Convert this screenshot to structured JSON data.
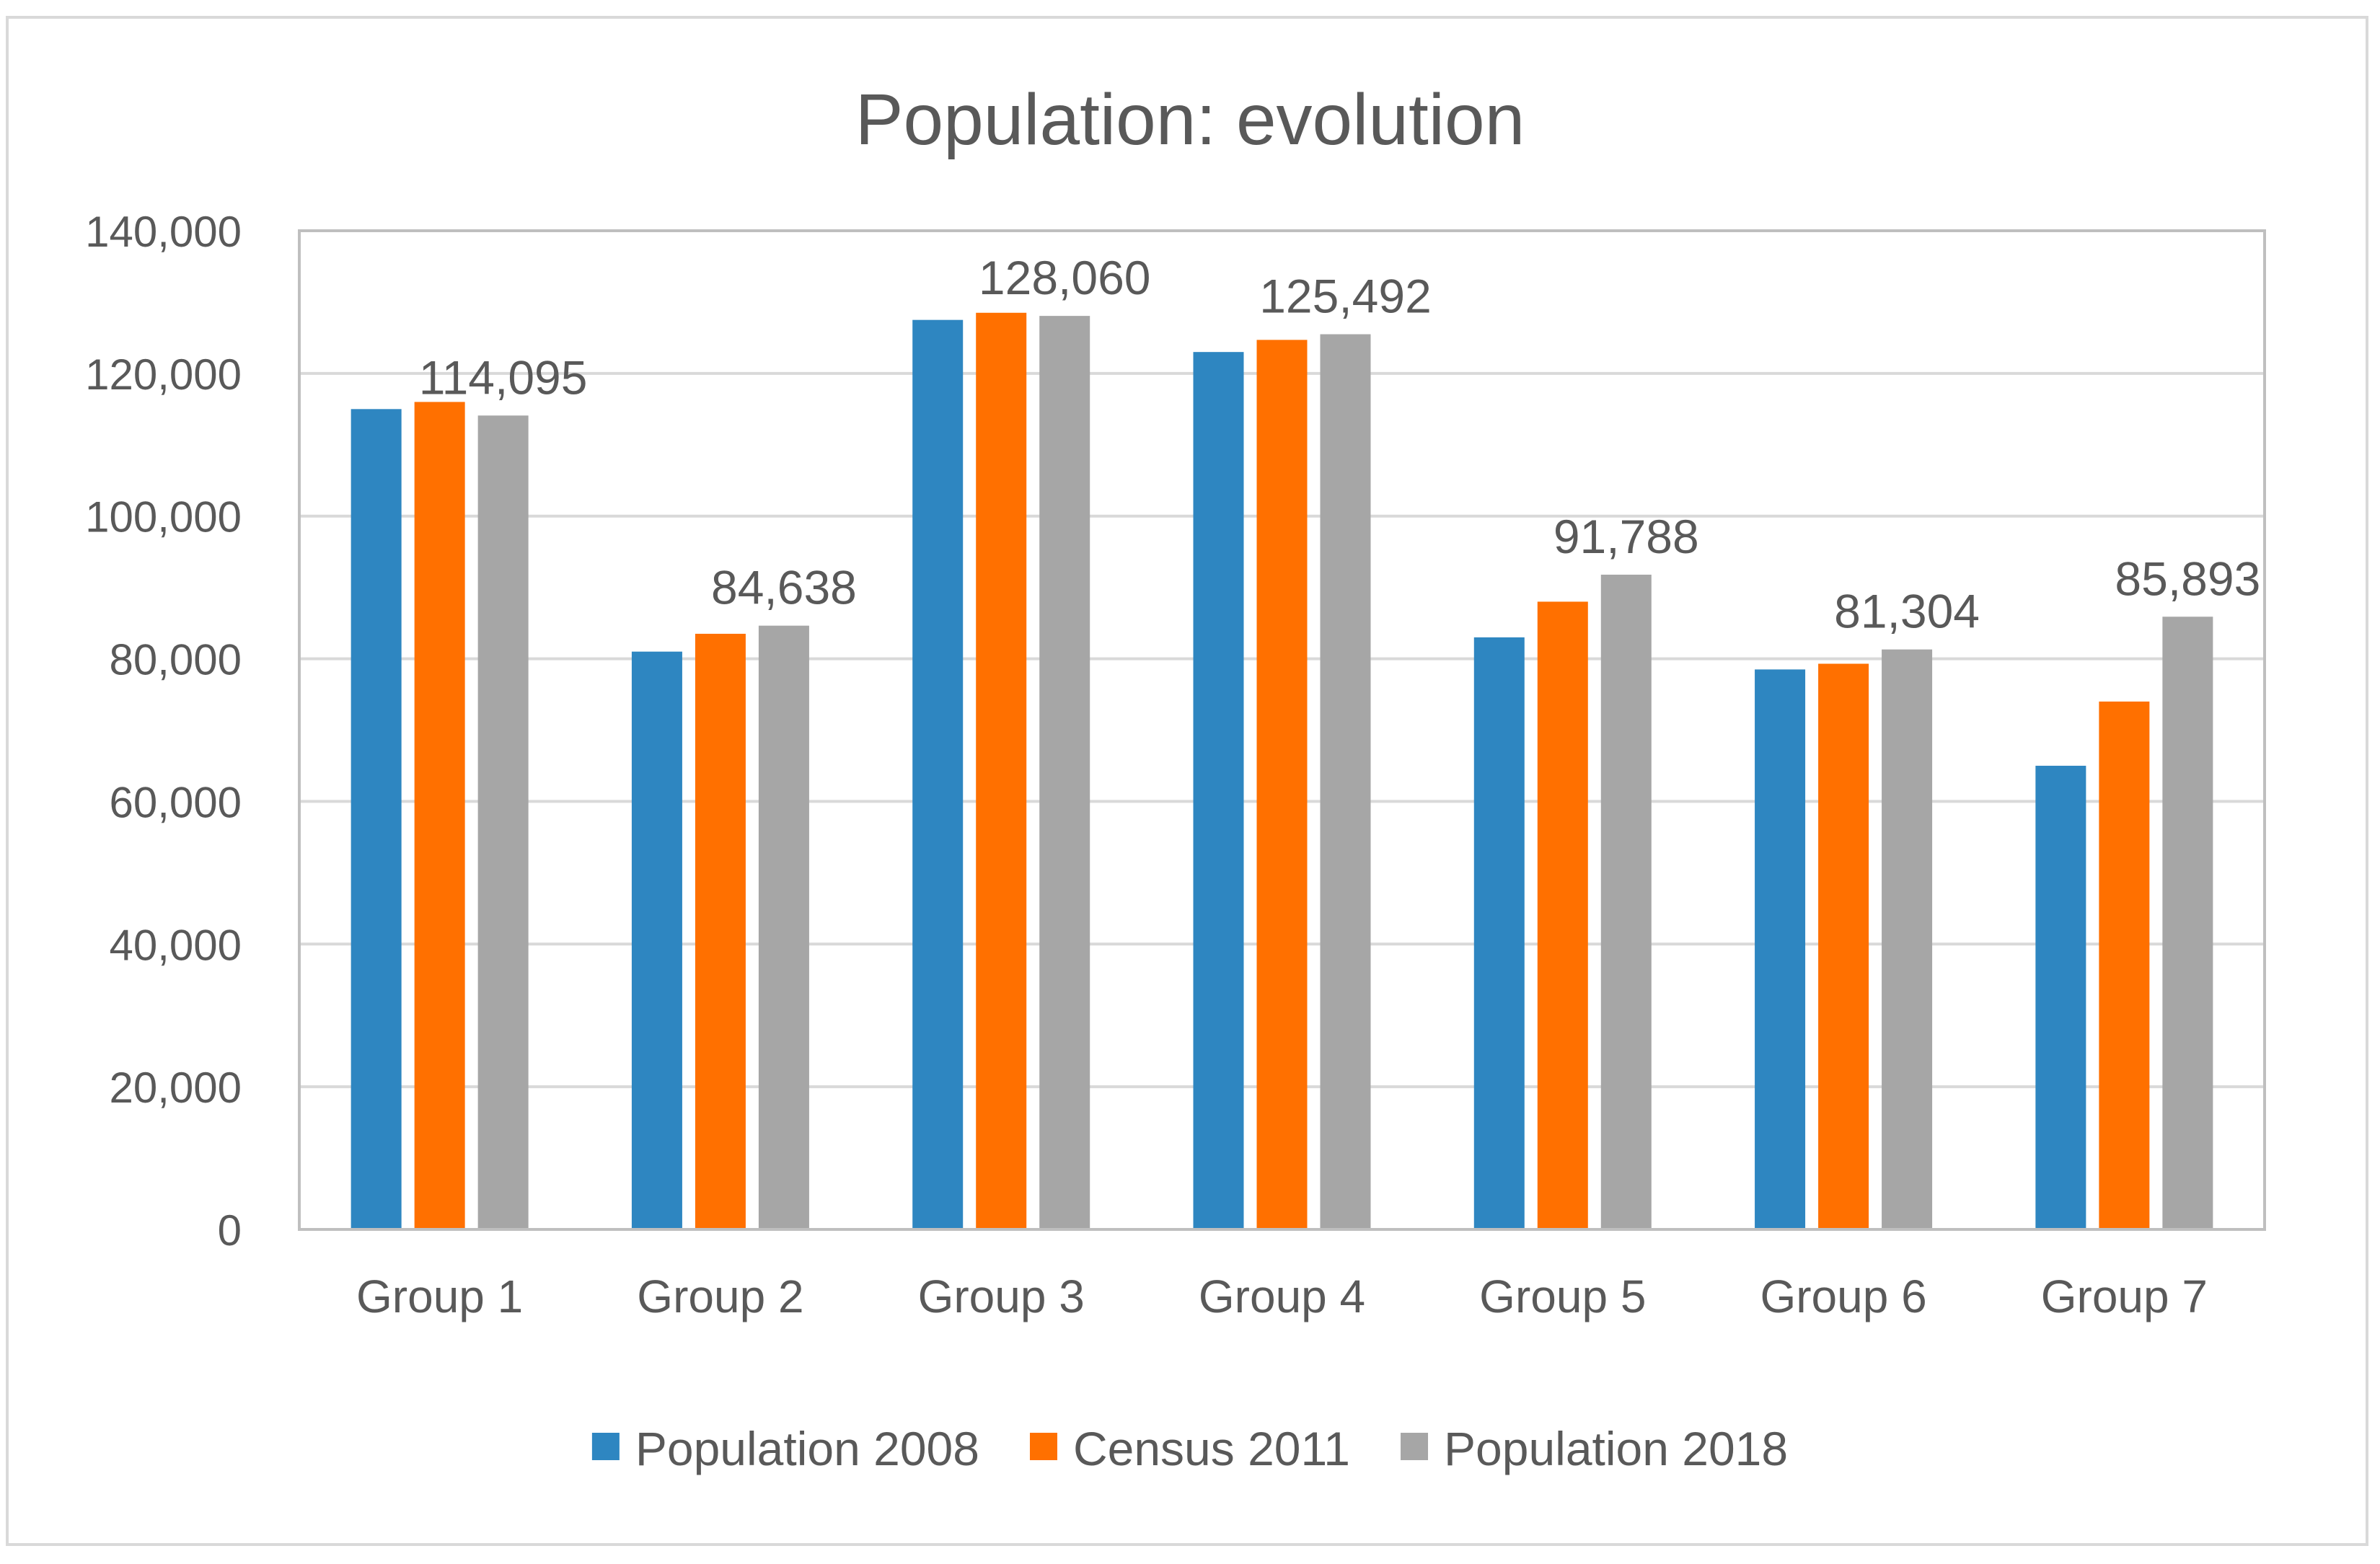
{
  "chart_data": {
    "type": "bar",
    "title": "Population: evolution",
    "xlabel": "",
    "ylabel": "",
    "ylim": [
      0,
      140000
    ],
    "yticks": [
      0,
      20000,
      40000,
      60000,
      80000,
      100000,
      120000,
      140000
    ],
    "ytick_labels": [
      "0",
      "20,000",
      "40,000",
      "60,000",
      "80,000",
      "100,000",
      "120,000",
      "140,000"
    ],
    "grid": true,
    "legend_position": "bottom",
    "categories": [
      "Group 1",
      "Group 2",
      "Group 3",
      "Group 4",
      "Group 5",
      "Group 6",
      "Group 7"
    ],
    "series": [
      {
        "name": "Population 2008",
        "color": "#2E86C1",
        "values": [
          115000,
          81000,
          127500,
          123000,
          83000,
          78500,
          65000
        ]
      },
      {
        "name": "Census 2011",
        "color": "#FF7000",
        "values": [
          116000,
          83500,
          128500,
          124700,
          88000,
          79300,
          74000
        ]
      },
      {
        "name": "Population 2018",
        "color": "#A6A6A6",
        "values": [
          114095,
          84638,
          128060,
          125492,
          91788,
          81304,
          85893
        ]
      }
    ],
    "data_labels": {
      "series": "Population 2018",
      "labels": [
        "114,095",
        "84,638",
        "128,060",
        "125,492",
        "91,788",
        "81,304",
        "85,893"
      ]
    },
    "frame_color": "#D9D9D9",
    "gridline_color": "#D9D9D9",
    "text_color": "#595959"
  }
}
